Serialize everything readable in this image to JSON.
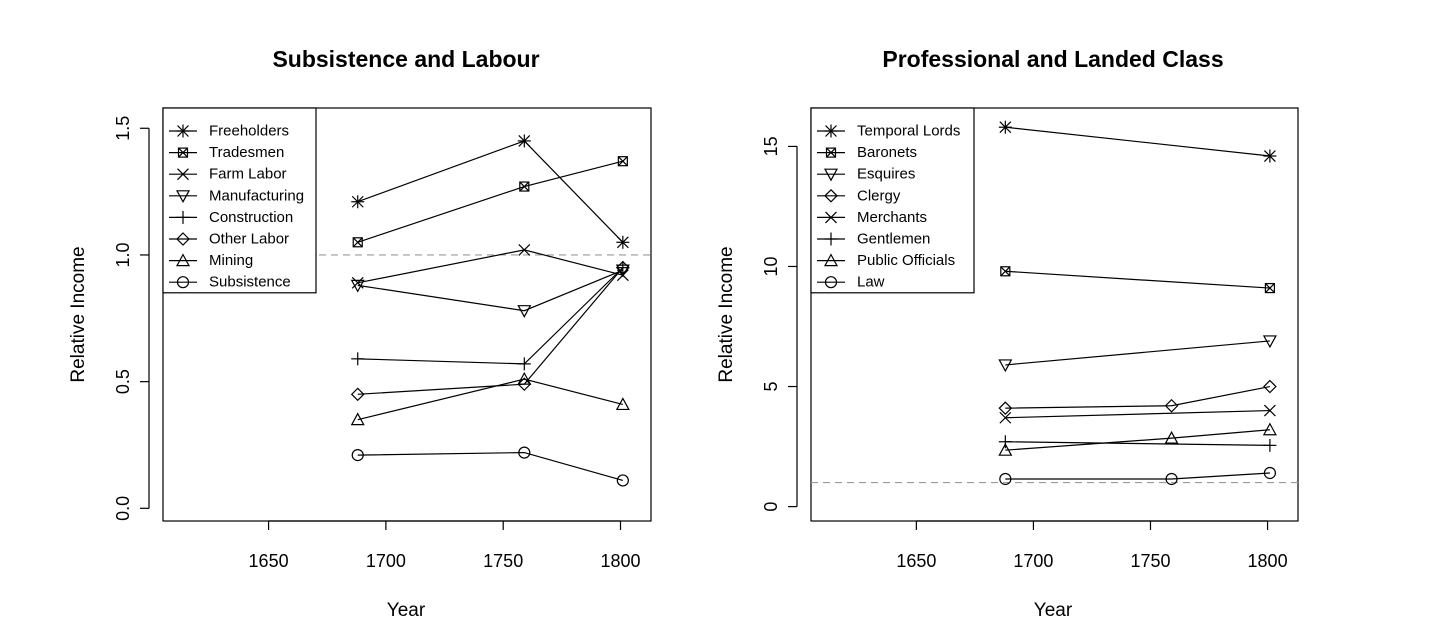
{
  "chart_data": [
    {
      "type": "line",
      "title": "Subsistence and Labour",
      "xlabel": "Year",
      "ylabel": "Relative Income",
      "xlim": [
        1605,
        1813
      ],
      "ylim": [
        -0.05,
        1.58
      ],
      "xticks": [
        1650,
        1700,
        1750,
        1800
      ],
      "xtick_labels": [
        "1650",
        "1700",
        "1750",
        "1800"
      ],
      "yticks": [
        0,
        0.5,
        1,
        1.5
      ],
      "ytick_labels": [
        "0.0",
        "0.5",
        "1.0",
        "1.5"
      ],
      "reference_line": 1.0,
      "legend_position": "top-left",
      "x": [
        1688,
        1759,
        1801
      ],
      "series": [
        {
          "name": "Freeholders",
          "marker": "asterisk",
          "values": [
            1.21,
            1.45,
            1.05
          ]
        },
        {
          "name": "Tradesmen",
          "marker": "boxed-x",
          "values": [
            1.05,
            1.27,
            1.37
          ]
        },
        {
          "name": "Farm Labor",
          "marker": "x",
          "values": [
            0.89,
            1.02,
            0.92
          ]
        },
        {
          "name": "Manufacturing",
          "marker": "triangle-down",
          "values": [
            0.88,
            0.78,
            0.94
          ]
        },
        {
          "name": "Construction",
          "marker": "plus",
          "values": [
            0.59,
            0.57,
            0.95
          ]
        },
        {
          "name": "Other Labor",
          "marker": "diamond",
          "values": [
            0.45,
            0.49,
            0.95
          ]
        },
        {
          "name": "Mining",
          "marker": "triangle-up",
          "values": [
            0.35,
            0.51,
            0.41
          ]
        },
        {
          "name": "Subsistence",
          "marker": "circle",
          "values": [
            0.21,
            0.22,
            0.11
          ]
        }
      ]
    },
    {
      "type": "line",
      "title": "Professional and Landed Class",
      "xlabel": "Year",
      "ylabel": "Relative Income",
      "xlim": [
        1605,
        1813
      ],
      "ylim": [
        -0.6,
        16.6
      ],
      "xticks": [
        1650,
        1700,
        1750,
        1800
      ],
      "xtick_labels": [
        "1650",
        "1700",
        "1750",
        "1800"
      ],
      "yticks": [
        0,
        5,
        10,
        15
      ],
      "ytick_labels": [
        "0",
        "5",
        "10",
        "15"
      ],
      "reference_line": 1.0,
      "legend_position": "top-left",
      "x": [
        1688,
        1759,
        1801
      ],
      "series": [
        {
          "name": "Temporal Lords",
          "marker": "asterisk",
          "values": [
            15.8,
            null,
            14.6
          ]
        },
        {
          "name": "Baronets",
          "marker": "boxed-x",
          "values": [
            9.8,
            null,
            9.1
          ]
        },
        {
          "name": "Esquires",
          "marker": "triangle-down",
          "values": [
            5.9,
            null,
            6.9
          ]
        },
        {
          "name": "Clergy",
          "marker": "diamond",
          "values": [
            4.1,
            4.2,
            5.0
          ]
        },
        {
          "name": "Merchants",
          "marker": "x",
          "values": [
            3.7,
            null,
            4.0
          ]
        },
        {
          "name": "Gentlemen",
          "marker": "plus",
          "values": [
            2.7,
            null,
            2.55
          ]
        },
        {
          "name": "Public Officials",
          "marker": "triangle-up",
          "values": [
            2.35,
            2.85,
            3.2
          ]
        },
        {
          "name": "Law",
          "marker": "circle",
          "values": [
            1.15,
            1.15,
            1.4
          ]
        }
      ]
    }
  ]
}
